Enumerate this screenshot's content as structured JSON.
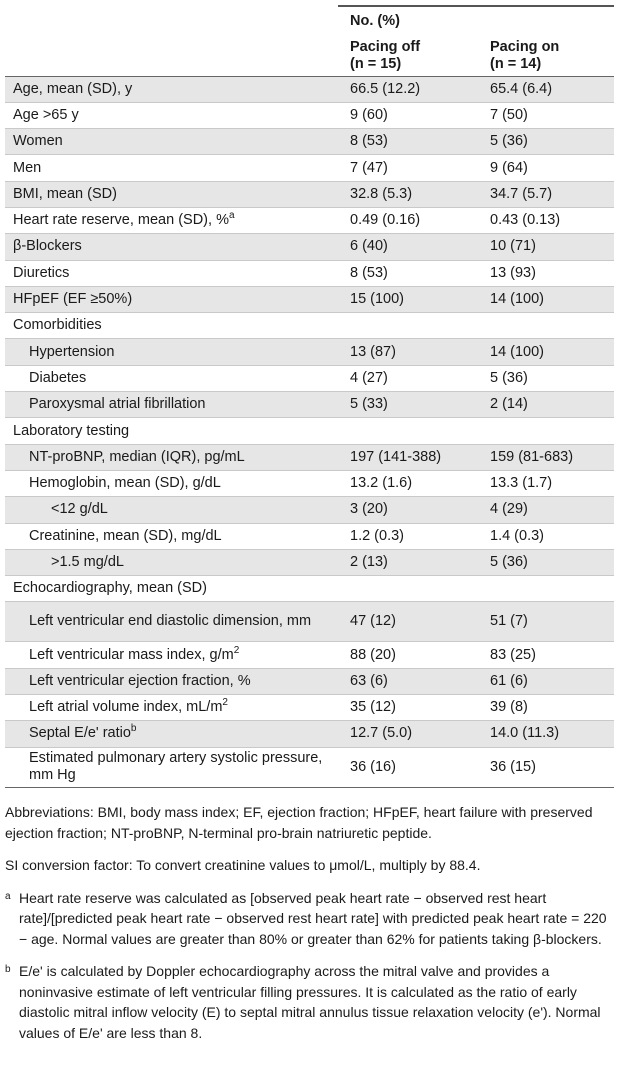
{
  "header": {
    "group_label": "No. (%)",
    "col_off_line1": "Pacing off",
    "col_off_line2": "(n = 15)",
    "col_on_line1": "Pacing on",
    "col_on_line2": "(n = 14)"
  },
  "rows": [
    {
      "label": "Age, mean (SD), y",
      "off": "66.5 (12.2)",
      "on": "65.4 (6.4)"
    },
    {
      "label": "Age >65 y",
      "off": "9 (60)",
      "on": "7 (50)"
    },
    {
      "label": "Women",
      "off": "8 (53)",
      "on": "5 (36)"
    },
    {
      "label": "Men",
      "off": "7 (47)",
      "on": "9 (64)"
    },
    {
      "label": "BMI, mean (SD)",
      "off": "32.8 (5.3)",
      "on": "34.7 (5.7)"
    },
    {
      "label": "Heart rate reserve, mean (SD), %",
      "sup": "a",
      "off": "0.49 (0.16)",
      "on": "0.43 (0.13)"
    },
    {
      "label": "β-Blockers",
      "off": "6 (40)",
      "on": "10 (71)"
    },
    {
      "label": "Diuretics",
      "off": "8 (53)",
      "on": "13 (93)"
    },
    {
      "label": "HFpEF (EF ≥50%)",
      "off": "15 (100)",
      "on": "14 (100)"
    },
    {
      "label": "Comorbidities",
      "off": "",
      "on": ""
    },
    {
      "label": "Hypertension",
      "off": "13 (87)",
      "on": "14 (100)"
    },
    {
      "label": "Diabetes",
      "off": "4 (27)",
      "on": "5 (36)"
    },
    {
      "label": "Paroxysmal atrial fibrillation",
      "off": "5 (33)",
      "on": "2 (14)"
    },
    {
      "label": "Laboratory testing",
      "off": "",
      "on": ""
    },
    {
      "label": "NT-proBNP, median (IQR), pg/mL",
      "off": "197 (141-388)",
      "on": "159 (81-683)"
    },
    {
      "label": "Hemoglobin, mean (SD), g/dL",
      "off": "13.2 (1.6)",
      "on": "13.3 (1.7)"
    },
    {
      "label": "<12 g/dL",
      "off": "3 (20)",
      "on": "4 (29)"
    },
    {
      "label": "Creatinine, mean (SD), mg/dL",
      "off": "1.2 (0.3)",
      "on": "1.4 (0.3)"
    },
    {
      "label": ">1.5 mg/dL",
      "off": "2 (13)",
      "on": "5 (36)"
    },
    {
      "label": "Echocardiography, mean (SD)",
      "off": "",
      "on": ""
    },
    {
      "label": "Left ventricular end diastolic dimension, mm",
      "off": "47 (12)",
      "on": "51 (7)"
    },
    {
      "label": "Left ventricular mass index, g/m",
      "sup": "2",
      "off": "88 (20)",
      "on": "83 (25)"
    },
    {
      "label": "Left ventricular ejection fraction, %",
      "off": "63 (6)",
      "on": "61 (6)"
    },
    {
      "label": "Left atrial volume index, mL/m",
      "sup": "2",
      "off": "35 (12)",
      "on": "39 (8)"
    },
    {
      "label": "Septal E/e' ratio",
      "sup": "b",
      "off": "12.7 (5.0)",
      "on": "14.0 (11.3)"
    },
    {
      "label": "Estimated pulmonary artery systolic pressure, mm Hg",
      "off": "36 (16)",
      "on": "36 (15)"
    }
  ],
  "footer": {
    "abbreviations": "Abbreviations: BMI, body mass index; EF, ejection fraction; HFpEF, heart failure with preserved ejection fraction; NT-proBNP, N-terminal pro-brain natriuretic peptide.",
    "si_conversion": "SI conversion factor: To convert creatinine values to μmol/L, multiply by 88.4.",
    "note_a_marker": "a",
    "note_a": "Heart rate reserve was calculated as [observed peak heart rate − observed rest heart rate]/[predicted peak heart rate − observed rest heart rate] with predicted peak heart rate = 220 − age. Normal values are greater than 80% or greater than 62% for patients taking β-blockers.",
    "note_b_marker": "b",
    "note_b": "E/e' is calculated by Doppler echocardiography across the mitral valve and provides a noninvasive estimate of left ventricular filling pressures. It is calculated as the ratio of early diastolic mitral inflow velocity (E) to septal mitral annulus tissue relaxation velocity (e'). Normal values of E/e' are less than 8."
  }
}
